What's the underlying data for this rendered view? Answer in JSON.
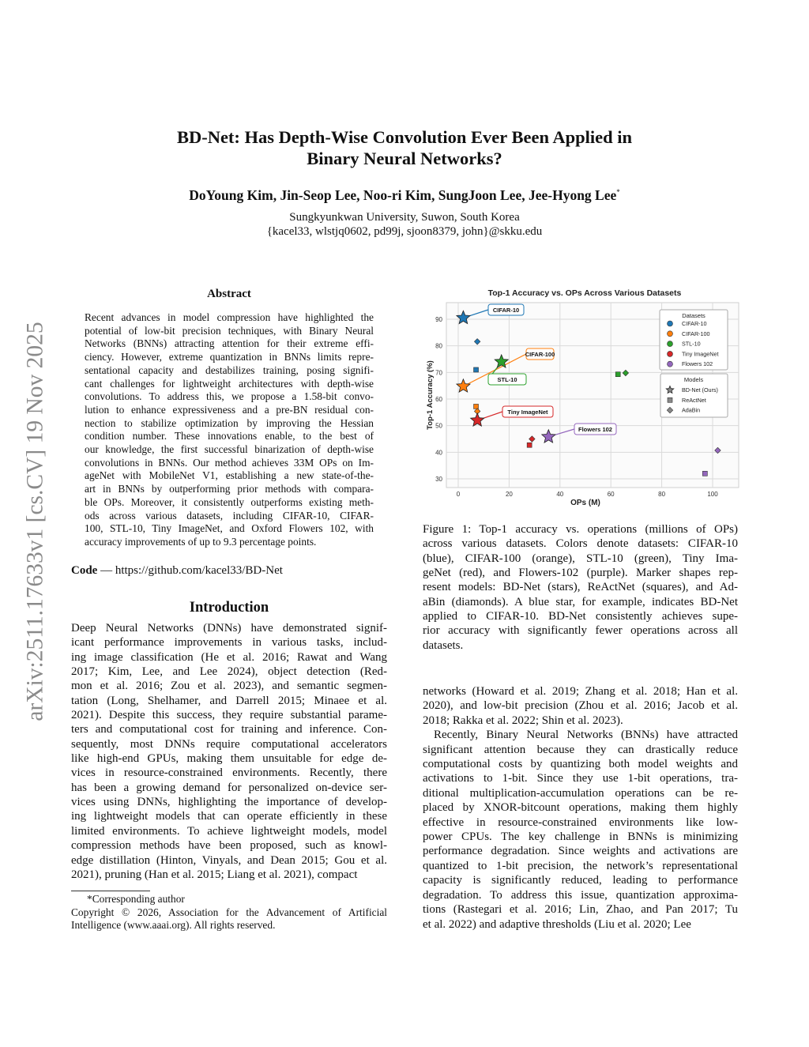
{
  "header": {
    "title_lines": [
      "BD-Net: Has Depth-Wise Convolution Ever Been Applied in",
      "Binary Neural Networks?"
    ],
    "authors": "DoYoung Kim, Jin-Seop Lee, Noo-ri Kim, SungJoon Lee, Jee-Hyong Lee",
    "author_mark": "*",
    "affiliation": "Sungkyunkwan University, Suwon, South Korea",
    "emails": "{kacel33, wlstjq0602, pd99j, sjoon8379, john}@skku.edu"
  },
  "arxiv_stamp": "arXiv:2511.17633v1  [cs.CV]  19 Nov 2025",
  "abstract": {
    "heading": "Abstract",
    "lines": [
      "Recent advances in model compression have highlighted the",
      "potential of low-bit precision techniques, with Binary Neural",
      "Networks (BNNs) attracting attention for their extreme effi-",
      "ciency. However, extreme quantization in BNNs limits repre-",
      "sentational capacity and destabilizes training, posing signifi-",
      "cant challenges for lightweight architectures with depth-wise",
      "convolutions. To address this, we propose a 1.58-bit convo-",
      "lution to enhance expressiveness and a pre-BN residual con-",
      "nection to stabilize optimization by improving the Hessian",
      "condition number. These innovations enable, to the best of",
      "our knowledge, the first successful binarization of depth-wise",
      "convolutions in BNNs. Our method achieves 33M OPs on Im-",
      "ageNet with MobileNet V1, establishing a new state-of-the-",
      "art in BNNs by outperforming prior methods with compara-",
      "ble OPs. Moreover, it consistently outperforms existing meth-",
      "ods across various datasets, including CIFAR-10, CIFAR-",
      "100, STL-10, Tiny ImageNet, and Oxford Flowers 102, with",
      "accuracy improvements of up to 9.3 percentage points."
    ]
  },
  "code": {
    "label": "Code",
    "separator": " — ",
    "url": "https://github.com/kacel33/BD-Net"
  },
  "introduction": {
    "heading": "Introduction",
    "lines": [
      "Deep Neural Networks (DNNs) have demonstrated signif-",
      "icant performance improvements in various tasks, includ-",
      "ing image classification (He et al. 2016; Rawat and Wang",
      "2017; Kim, Lee, and Lee 2024), object detection (Red-",
      "mon et al. 2016; Zou et al. 2023), and semantic segmen-",
      "tation (Long, Shelhamer, and Darrell 2015; Minaee et al.",
      "2021). Despite this success, they require substantial parame-",
      "ters and computational cost for training and inference. Con-",
      "sequently, most DNNs require computational accelerators",
      "like high-end GPUs, making them unsuitable for edge de-",
      "vices in resource-constrained environments. Recently, there",
      "has been a growing demand for personalized on-device ser-",
      "vices using DNNs, highlighting the importance of develop-",
      "ing lightweight models that can operate efficiently in these",
      "limited environments. To achieve lightweight models, model",
      "compression methods have been proposed, such as knowl-",
      "edge distillation (Hinton, Vinyals, and Dean 2015; Gou et al.",
      "2021), pruning (Han et al. 2015; Liang et al. 2021), compact"
    ]
  },
  "footnote": {
    "lines": [
      "*Corresponding author",
      "Copyright © 2026, Association for the Advancement of Artificial",
      "Intelligence (www.aaai.org). All rights reserved."
    ]
  },
  "figure_caption": {
    "lines": [
      "Figure 1: Top-1 accuracy vs. operations (millions of OPs)",
      "across various datasets. Colors denote datasets: CIFAR-10",
      "(blue), CIFAR-100 (orange), STL-10 (green), Tiny Ima-",
      "geNet (red), and Flowers-102 (purple). Marker shapes rep-",
      "resent models: BD-Net (stars), ReActNet (squares), and Ad-",
      "aBin (diamonds). A blue star, for example, indicates BD-Net",
      "applied to CIFAR-10. BD-Net consistently achieves supe-",
      "rior accuracy with significantly fewer operations across all",
      "datasets."
    ]
  },
  "right_column": {
    "para1": [
      "networks (Howard et al. 2019; Zhang et al. 2018; Han et al.",
      "2020), and low-bit precision (Zhou et al. 2016; Jacob et al.",
      "2018; Rakka et al. 2022; Shin et al. 2023)."
    ],
    "para2": [
      "Recently, Binary Neural Networks (BNNs) have attracted",
      "significant attention because they can drastically reduce",
      "computational costs by quantizing both model weights and",
      "activations to 1-bit. Since they use 1-bit operations, tra-",
      "ditional multiplication-accumulation operations can be re-",
      "placed by XNOR-bitcount operations, making them highly",
      "effective in resource-constrained environments like low-",
      "power CPUs. The key challenge in BNNs is minimizing",
      "performance degradation. Since weights and activations are",
      "quantized to 1-bit precision, the network’s representational",
      "capacity is significantly reduced, leading to performance",
      "degradation. To address this issue, quantization approxima-",
      "tions (Rastegari et al. 2016; Lin, Zhao, and Pan 2017; Tu",
      "et al. 2022) and adaptive thresholds (Liu et al. 2020; Lee"
    ]
  },
  "chart_data": {
    "type": "scatter",
    "title": "Top-1 Accuracy vs. OPs Across Various Datasets",
    "xlabel": "OPs (M)",
    "ylabel": "Top-1 Accuracy (%)",
    "xlim": [
      -7,
      108
    ],
    "ylim": [
      27,
      95
    ],
    "xticks": [
      0,
      20,
      40,
      60,
      80,
      100
    ],
    "yticks": [
      30,
      40,
      50,
      60,
      70,
      80,
      90
    ],
    "grid": true,
    "legend_placement": "top-right",
    "legend_datasets_title": "Datasets",
    "legend_models_title": "Models",
    "models": [
      {
        "name": "BD-Net (Ours)",
        "marker": "star"
      },
      {
        "name": "ReActNet",
        "marker": "square"
      },
      {
        "name": "AdaBin",
        "marker": "diamond"
      }
    ],
    "datasets": [
      {
        "name": "CIFAR-10",
        "color": "#1f77b4",
        "points": {
          "BD-Net (Ours)": [
            2,
            90.5
          ],
          "ReActNet": [
            7,
            71
          ],
          "AdaBin": [
            7.5,
            81.6
          ]
        }
      },
      {
        "name": "CIFAR-100",
        "color": "#ff7f0e",
        "points": {
          "BD-Net (Ours)": [
            2,
            64.8
          ],
          "ReActNet": [
            7,
            57.2
          ],
          "AdaBin": [
            7.5,
            55.4
          ]
        }
      },
      {
        "name": "STL-10",
        "color": "#2ca02c",
        "points": {
          "BD-Net (Ours)": [
            17,
            74
          ],
          "ReActNet": [
            62.8,
            69.3
          ],
          "AdaBin": [
            65.8,
            69.8
          ]
        }
      },
      {
        "name": "Tiny ImageNet",
        "color": "#d62728",
        "points": {
          "BD-Net (Ours)": [
            7.5,
            52
          ],
          "ReActNet": [
            28,
            42.7
          ],
          "AdaBin": [
            29,
            45
          ]
        }
      },
      {
        "name": "Flowers 102",
        "color": "#9467bd",
        "points": {
          "BD-Net (Ours)": [
            35.5,
            45.8
          ],
          "ReActNet": [
            97,
            32
          ],
          "AdaBin": [
            102,
            40.7
          ]
        }
      }
    ]
  }
}
